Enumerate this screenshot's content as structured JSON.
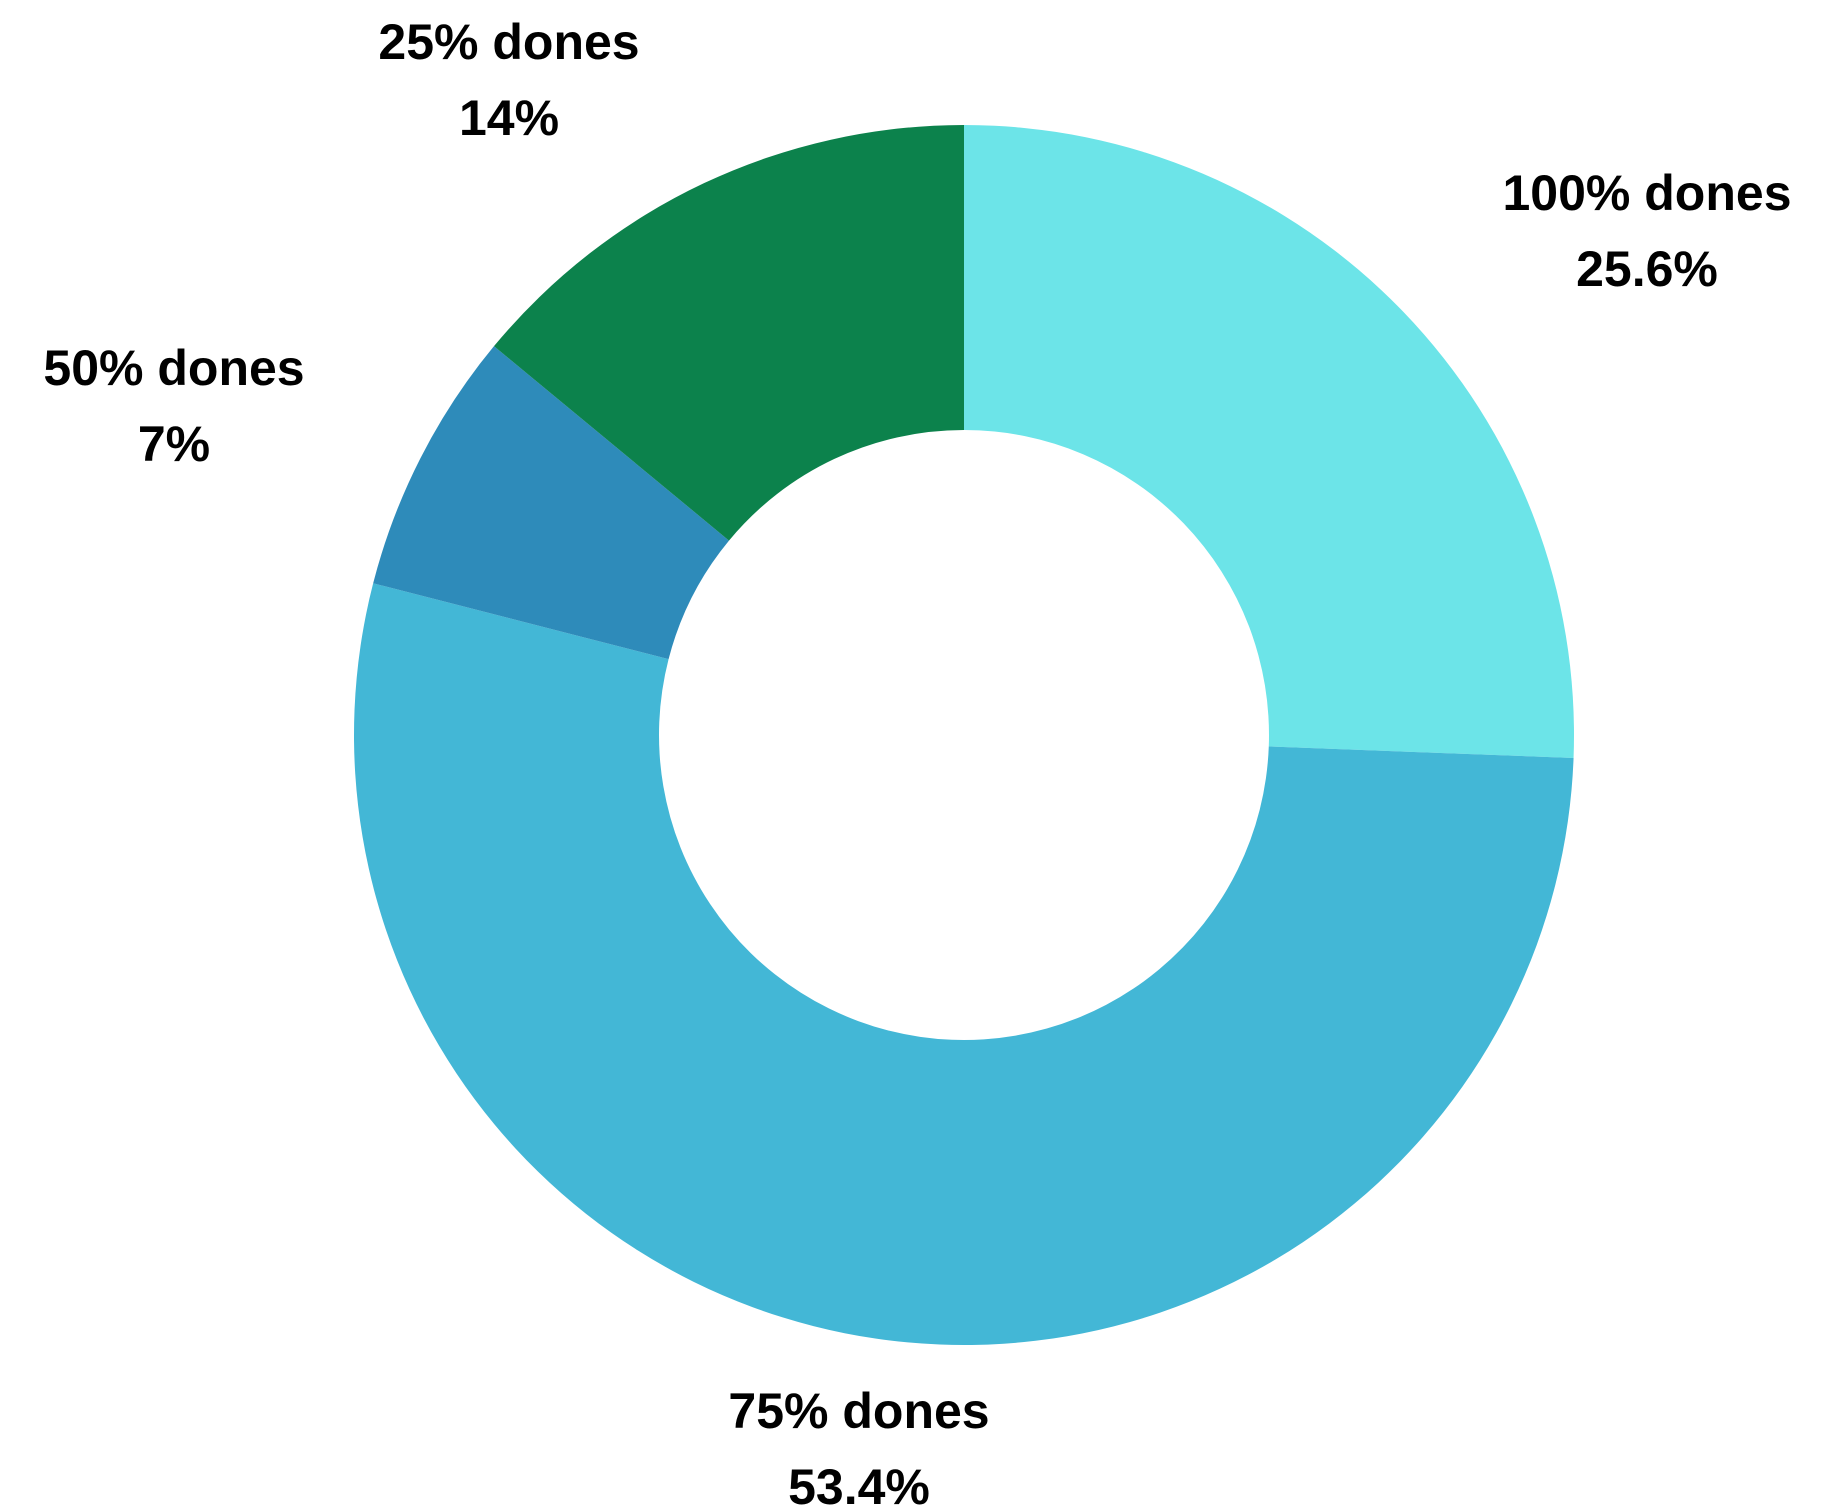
{
  "chart_data": {
    "type": "donut",
    "categories": [
      "100% dones",
      "75% dones",
      "50% dones",
      "25% dones"
    ],
    "values": [
      25.6,
      53.4,
      7,
      14
    ],
    "value_labels": [
      "25.6%",
      "53.4%",
      "7%",
      "14%"
    ],
    "colors": [
      "#6ce4e8",
      "#43b7d6",
      "#2e8bba",
      "#0c824c"
    ]
  }
}
